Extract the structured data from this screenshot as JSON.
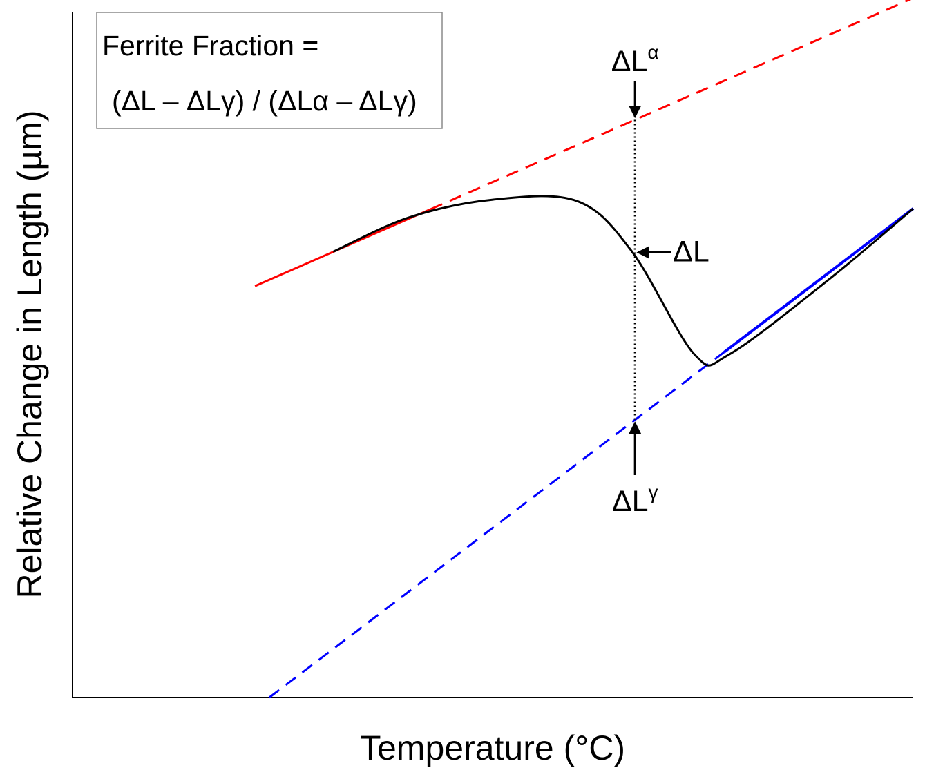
{
  "chart_data": {
    "type": "line",
    "title": "",
    "xlabel": "Temperature (°C)",
    "ylabel": "Relative Change in Length (µm)",
    "ticks": "none",
    "grid": false,
    "xlim": [
      0,
      100
    ],
    "ylim": [
      0,
      100
    ],
    "formula_box": {
      "line1": "Ferrite Fraction =",
      "line2": "(ΔL – ΔLγ) / (ΔLα – ΔLγ)"
    },
    "series": [
      {
        "role": "measured",
        "color": "#000000",
        "style": "solid",
        "points": [
          {
            "x": 31,
            "y": 65
          },
          {
            "x": 40,
            "y": 70
          },
          {
            "x": 50,
            "y": 72.6
          },
          {
            "x": 60,
            "y": 72.4
          },
          {
            "x": 66.5,
            "y": 65.1
          },
          {
            "x": 74,
            "y": 50
          },
          {
            "x": 78.2,
            "y": 50.1
          },
          {
            "x": 90,
            "y": 61
          },
          {
            "x": 100,
            "y": 71.3
          }
        ]
      },
      {
        "role": "ferrite-extrapolation",
        "color": "#ff0000",
        "style": "solid-then-dashed",
        "solid_x_range": [
          21.7,
          42.6
        ],
        "points": [
          {
            "x": 21.7,
            "y": 60
          },
          {
            "x": 100,
            "y": 102
          }
        ]
      },
      {
        "role": "austenite-extrapolation",
        "color": "#0000ff",
        "style": "dashed-then-solid",
        "solid_x_range": [
          77.5,
          100
        ],
        "points": [
          {
            "x": 23.4,
            "y": 0
          },
          {
            "x": 100,
            "y": 71.3
          }
        ]
      }
    ],
    "reference_x": 66.9,
    "annotations": [
      {
        "id": "dL_alpha",
        "label": "ΔL",
        "sup": "α"
      },
      {
        "id": "dL",
        "label": "ΔL",
        "sup": ""
      },
      {
        "id": "dL_gamma",
        "label": "ΔL",
        "sup": "γ"
      }
    ]
  }
}
